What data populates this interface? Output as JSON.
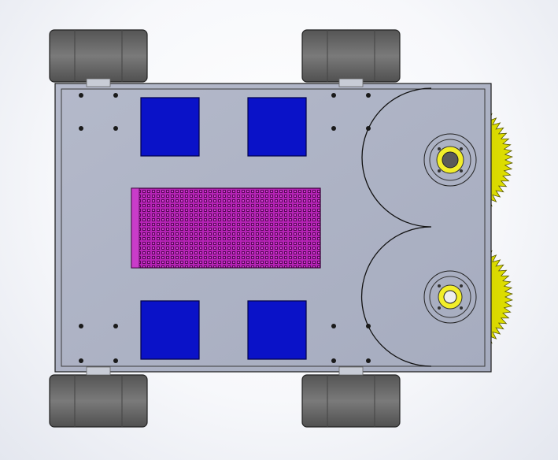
{
  "model": {
    "parts": {
      "wheels": {
        "count": 4,
        "color": "#6b6b6b"
      },
      "chassis_plate": {
        "color": "#aeb4c6"
      },
      "motor_blocks": {
        "count": 4,
        "color": "#0a12c8"
      },
      "mesh_panel": {
        "color": "#b020b0"
      },
      "flywheel_cutouts": {
        "count": 2
      },
      "gears": {
        "count": 2,
        "color": "#d4d400"
      },
      "bearings": {
        "count": 2,
        "accent": "#f2ee2a"
      },
      "mount_holes": {
        "count": 16
      }
    }
  }
}
